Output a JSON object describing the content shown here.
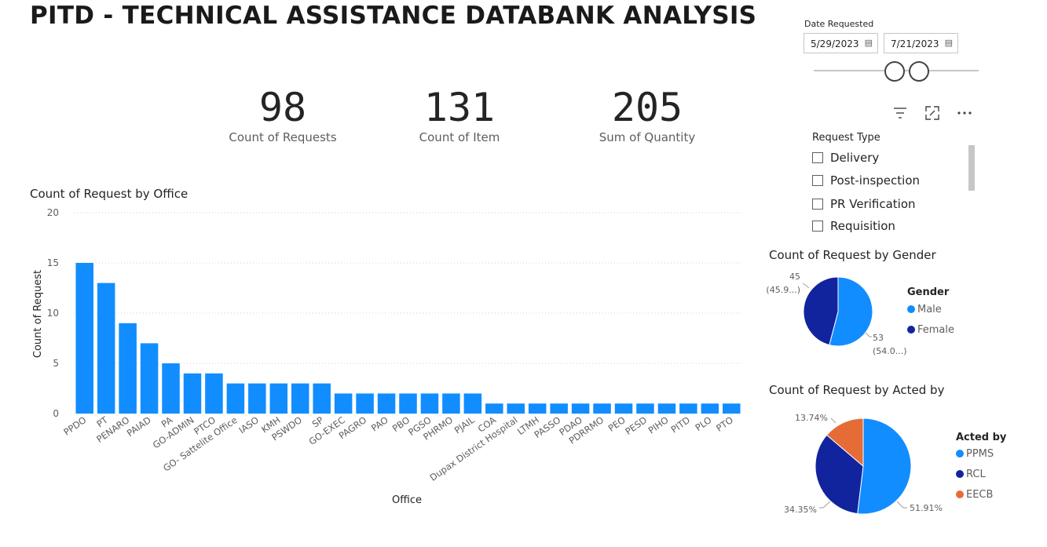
{
  "page": {
    "title": "PITD - TECHNICAL ASSISTANCE DATABANK ANALYSIS"
  },
  "kpis": [
    {
      "value": "98",
      "label": "Count of Requests"
    },
    {
      "value": "131",
      "label": "Count of Item"
    },
    {
      "value": "205",
      "label": "Sum of Quantity"
    }
  ],
  "date_filter": {
    "label": "Date Requested",
    "start": "5/29/2023",
    "end": "7/21/2023"
  },
  "visual_header": {
    "icons": [
      "filter-icon",
      "focus-mode-icon",
      "more-options-icon"
    ]
  },
  "request_type_slicer": {
    "title": "Request Type",
    "items": [
      "Delivery",
      "Post-inspection",
      "PR Verification",
      "Requisition"
    ]
  },
  "colors": {
    "bar": "#118DFF",
    "dark_blue": "#12239E",
    "orange": "#E66C37"
  },
  "chart_data": [
    {
      "type": "bar",
      "title": "Count of Request by Office",
      "xlabel": "Office",
      "ylabel": "Count of Request",
      "ylim": [
        0,
        20
      ],
      "yticks": [
        0,
        5,
        10,
        15,
        20
      ],
      "grid": true,
      "categories": [
        "PPDO",
        "PT",
        "PENARO",
        "PAIAD",
        "PA",
        "GO-ADMIN",
        "PTCO",
        "GO- Sattelite Office",
        "IASO",
        "KMH",
        "PSWDO",
        "SP",
        "GO-EXEC",
        "PAGRO",
        "PAO",
        "PBO",
        "PGSO",
        "PHRMO",
        "PJAIL",
        "COA",
        "Dupax District Hospital",
        "LTMH",
        "PASSO",
        "PDAO",
        "PDRRMO",
        "PEO",
        "PESD",
        "PIHO",
        "PITD",
        "PLO",
        "PTO"
      ],
      "values": [
        15,
        13,
        9,
        7,
        5,
        4,
        4,
        3,
        3,
        3,
        3,
        3,
        2,
        2,
        2,
        2,
        2,
        2,
        2,
        1,
        1,
        1,
        1,
        1,
        1,
        1,
        1,
        1,
        1,
        1,
        1
      ]
    },
    {
      "type": "pie",
      "title": "Count of Request by Gender",
      "legend_title": "Gender",
      "slices": [
        {
          "name": "Male",
          "value": 53,
          "label_value": "53",
          "label_pct": "(54.0...)",
          "color": "#118DFF"
        },
        {
          "name": "Female",
          "value": 45,
          "label_value": "45",
          "label_pct": "(45.9...)",
          "color": "#12239E"
        }
      ]
    },
    {
      "type": "pie",
      "title": "Count of Request by Acted by",
      "legend_title": "Acted by",
      "slices": [
        {
          "name": "PPMS",
          "value": 51.91,
          "label": "51.91%",
          "color": "#118DFF"
        },
        {
          "name": "RCL",
          "value": 34.35,
          "label": "34.35%",
          "color": "#12239E"
        },
        {
          "name": "EECB",
          "value": 13.74,
          "label": "13.74%",
          "color": "#E66C37"
        }
      ]
    }
  ]
}
